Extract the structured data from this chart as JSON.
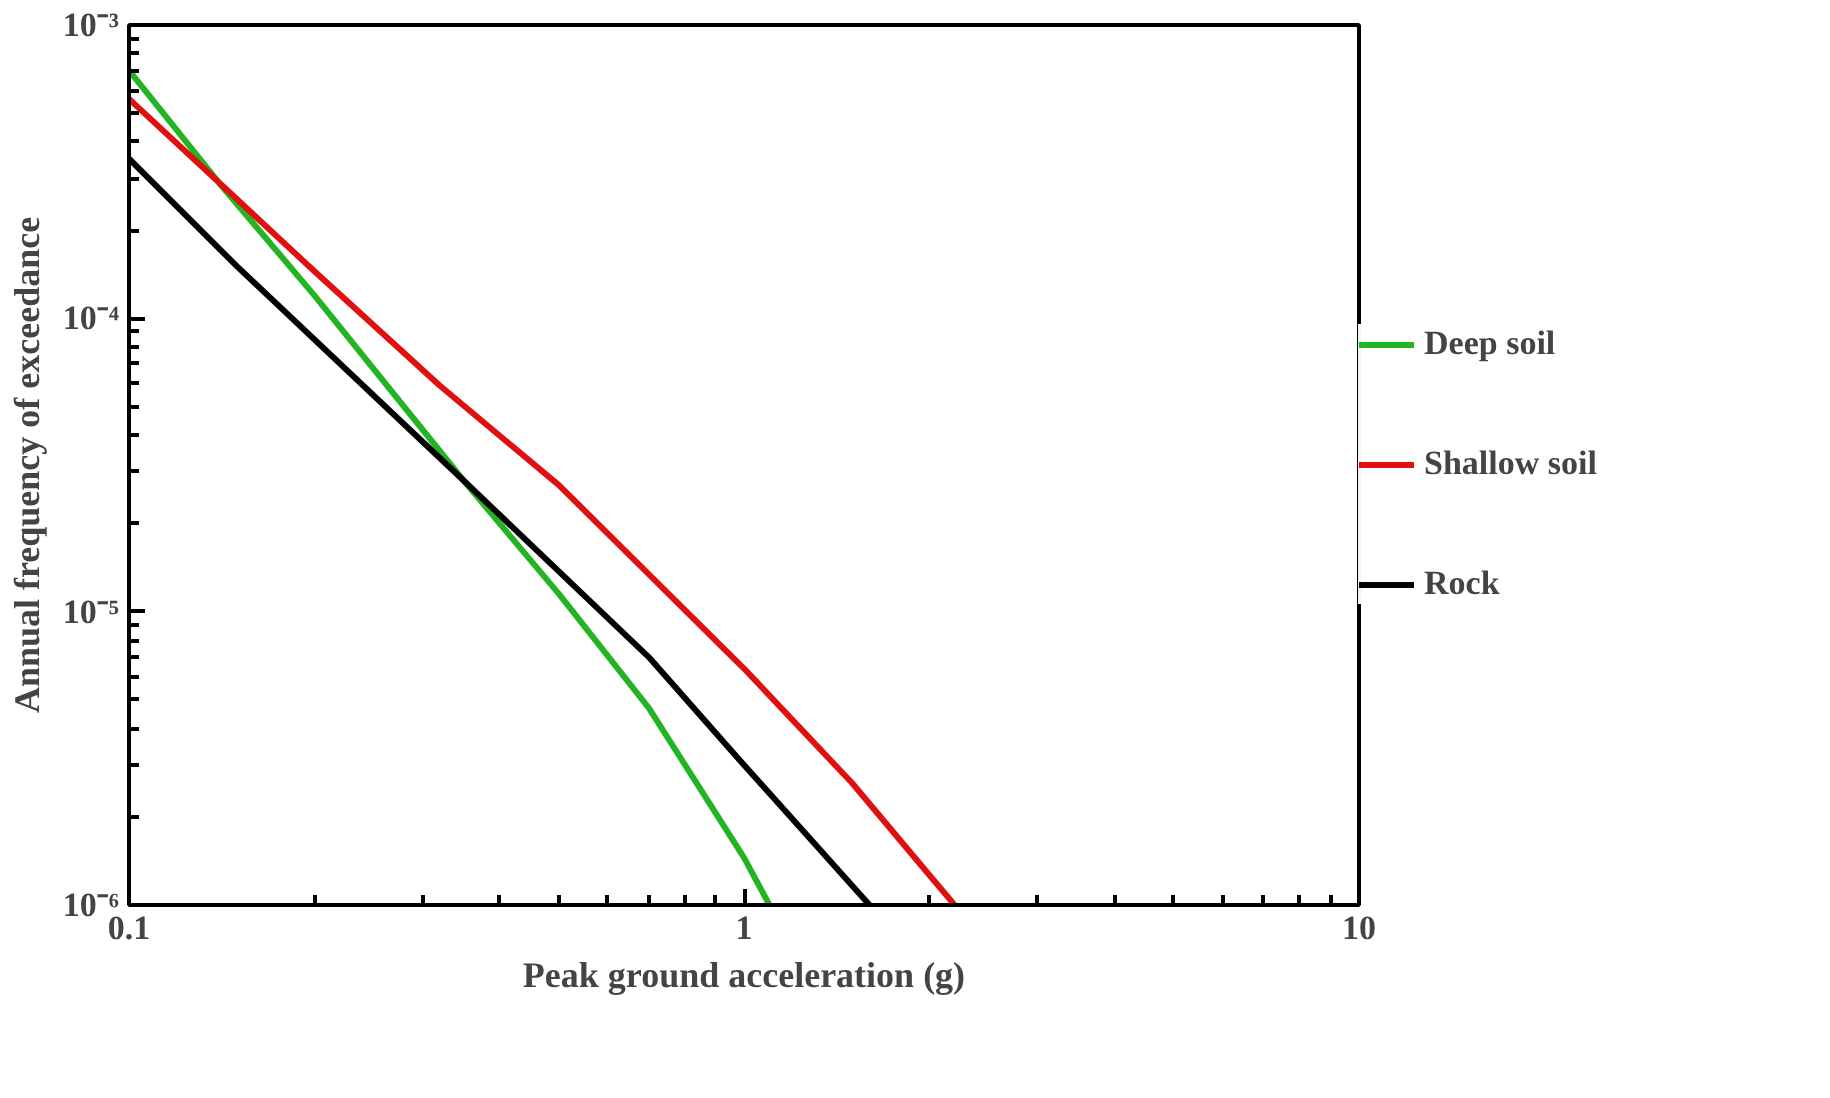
{
  "chart_data": {
    "type": "line",
    "xlabel": "Peak ground acceleration (g)",
    "ylabel": "Annual frequency of exceedance",
    "log": "xy",
    "grid": false,
    "legend": "right",
    "line_style": "solid",
    "marker": "none",
    "xlim": [
      0.1,
      10
    ],
    "ylim": [
      1e-06,
      0.001
    ],
    "xticks": [
      0.1,
      1,
      10,
      {
        "value": 0.2,
        "label": null
      },
      {
        "value": 0.3,
        "label": null
      },
      {
        "value": 0.4,
        "label": null
      },
      {
        "value": 0.5,
        "label": null
      },
      {
        "value": 0.6,
        "label": null
      },
      {
        "value": 0.7,
        "label": null
      },
      {
        "value": 0.8,
        "label": null
      },
      {
        "value": 0.9,
        "label": null
      },
      {
        "value": 2,
        "label": null
      },
      {
        "value": 3,
        "label": null
      },
      {
        "value": 4,
        "label": null
      },
      {
        "value": 5,
        "label": null
      },
      {
        "value": 6,
        "label": null
      },
      {
        "value": 7,
        "label": null
      },
      {
        "value": 8,
        "label": null
      },
      {
        "value": 9,
        "label": null
      }
    ],
    "yticks": [
      {
        "value": 1e-06,
        "label": "10⁻⁶"
      },
      {
        "value": 1e-05,
        "label": "10⁻⁵"
      },
      {
        "value": 0.0001,
        "label": "10⁻⁴"
      },
      {
        "value": 0.001,
        "label": "10⁻³"
      },
      {
        "value": 2e-06,
        "label": null
      },
      {
        "value": 3e-06,
        "label": null
      },
      {
        "value": 4e-06,
        "label": null
      },
      {
        "value": 5e-06,
        "label": null
      },
      {
        "value": 6e-06,
        "label": null
      },
      {
        "value": 7e-06,
        "label": null
      },
      {
        "value": 8e-06,
        "label": null
      },
      {
        "value": 9e-06,
        "label": null
      },
      {
        "value": 2e-05,
        "label": null
      },
      {
        "value": 3e-05,
        "label": null
      },
      {
        "value": 4e-05,
        "label": null
      },
      {
        "value": 5e-05,
        "label": null
      },
      {
        "value": 6e-05,
        "label": null
      },
      {
        "value": 7e-05,
        "label": null
      },
      {
        "value": 8e-05,
        "label": null
      },
      {
        "value": 9e-05,
        "label": null
      },
      {
        "value": 0.0002,
        "label": null
      },
      {
        "value": 0.0003,
        "label": null
      },
      {
        "value": 0.0004,
        "label": null
      },
      {
        "value": 0.0005,
        "label": null
      },
      {
        "value": 0.0006,
        "label": null
      },
      {
        "value": 0.0007,
        "label": null
      },
      {
        "value": 0.0008,
        "label": null
      },
      {
        "value": 0.0009,
        "label": null
      }
    ],
    "series": [
      {
        "name": "Deep soil",
        "color": "#22b422",
        "x": [
          0.1,
          0.14,
          0.2,
          0.35,
          0.5,
          0.7,
          1.0,
          1.1
        ],
        "values": [
          0.0007,
          0.00029,
          0.00012,
          2.8e-05,
          1.15e-05,
          4.7e-06,
          1.45e-06,
          1e-06
        ]
      },
      {
        "name": "Shallow soil",
        "color": "#e01010",
        "x": [
          0.1,
          0.2,
          0.32,
          0.5,
          1.0,
          1.5,
          1.95,
          2.2
        ],
        "values": [
          0.00056,
          0.000145,
          5.9e-05,
          2.7e-05,
          6.4e-06,
          2.6e-06,
          1.35e-06,
          1e-06
        ]
      },
      {
        "name": "Rock",
        "color": "#000000",
        "x": [
          0.1,
          0.15,
          0.35,
          0.7,
          1.0,
          1.6
        ],
        "values": [
          0.00035,
          0.00015,
          2.8e-05,
          7e-06,
          3e-06,
          1e-06
        ]
      }
    ]
  }
}
